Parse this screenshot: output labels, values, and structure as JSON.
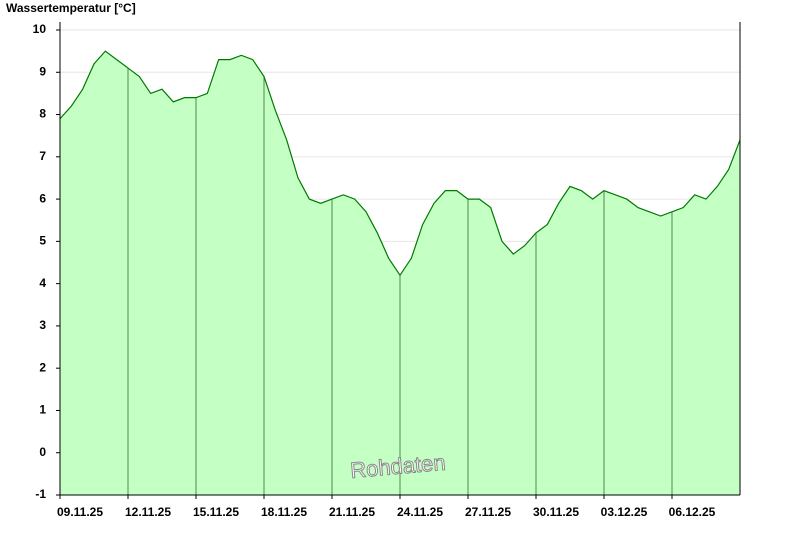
{
  "chart_data": {
    "type": "area",
    "title": "Wassertemperatur [°C]",
    "annotation": "Rohdaten",
    "color": "#007a00",
    "fill": "#c4ffc4",
    "grid": true,
    "x": [
      0,
      0.5,
      1,
      1.5,
      2,
      2.5,
      3,
      3.5,
      4,
      4.5,
      5,
      5.5,
      6,
      6.5,
      7,
      7.5,
      8,
      8.5,
      9,
      9.5,
      10,
      10.5,
      11,
      11.5,
      12,
      12.5,
      13,
      13.5,
      14,
      14.5,
      15,
      15.5,
      16,
      16.5,
      17,
      17.5,
      18,
      18.5,
      19,
      19.5,
      20,
      20.5,
      21,
      21.5,
      22,
      22.5,
      23,
      23.5,
      24,
      24.5,
      25,
      25.5,
      26,
      26.5,
      27,
      27.5,
      28,
      28.5,
      29,
      29.5,
      30
    ],
    "values": [
      7.9,
      8.2,
      8.6,
      9.2,
      9.5,
      9.3,
      9.1,
      8.9,
      8.5,
      8.6,
      8.3,
      8.4,
      8.4,
      8.5,
      9.3,
      9.3,
      9.4,
      9.3,
      8.9,
      8.1,
      7.4,
      6.5,
      6.0,
      5.9,
      6.0,
      6.1,
      6.0,
      5.7,
      5.2,
      4.6,
      4.2,
      4.6,
      5.4,
      5.9,
      6.2,
      6.2,
      6.0,
      6.0,
      5.8,
      5.0,
      4.7,
      4.9,
      5.2,
      5.4,
      5.9,
      6.3,
      6.2,
      6.0,
      6.2,
      6.1,
      6.0,
      5.8,
      5.7,
      5.6,
      5.7,
      5.8,
      6.1,
      6.0,
      6.3,
      6.7,
      7.4
    ],
    "xlim": [
      0,
      30
    ],
    "xticks": [
      {
        "value": 0,
        "label": "09.11.25"
      },
      {
        "value": 3,
        "label": "12.11.25"
      },
      {
        "value": 6,
        "label": "15.11.25"
      },
      {
        "value": 9,
        "label": "18.11.25"
      },
      {
        "value": 12,
        "label": "21.11.25"
      },
      {
        "value": 15,
        "label": "24.11.25"
      },
      {
        "value": 18,
        "label": "27.11.25"
      },
      {
        "value": 21,
        "label": "30.11.25"
      },
      {
        "value": 24,
        "label": "03.12.25"
      },
      {
        "value": 27,
        "label": "06.12.25"
      }
    ],
    "ylim": [
      -1,
      10
    ],
    "yticks": [
      -1,
      0,
      1,
      2,
      3,
      4,
      5,
      6,
      7,
      8,
      9,
      10
    ]
  }
}
